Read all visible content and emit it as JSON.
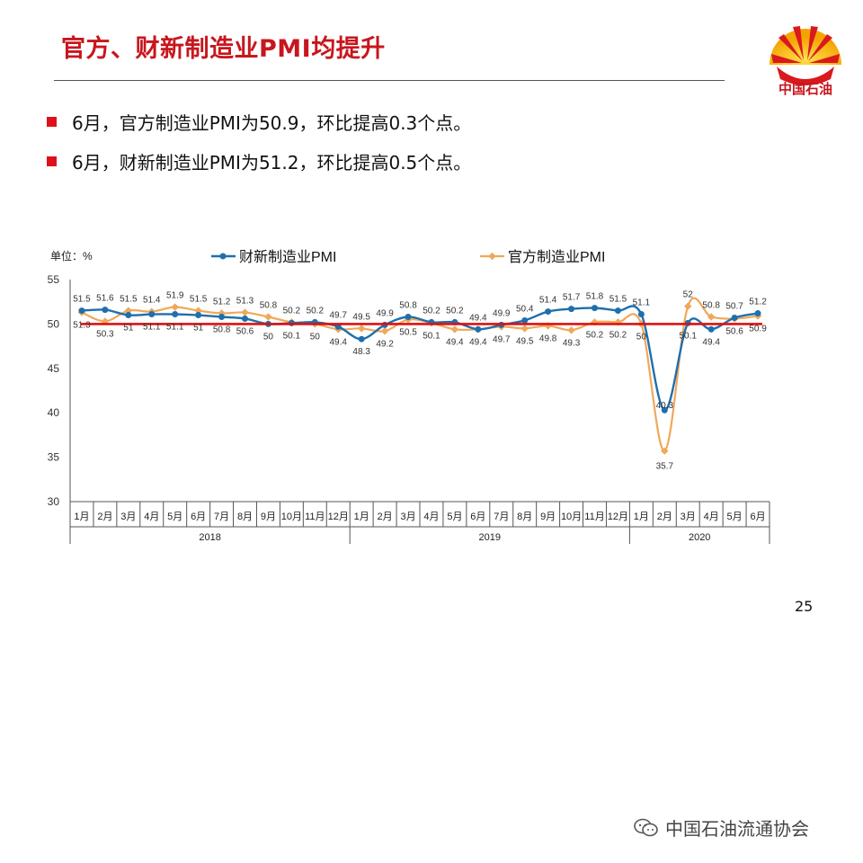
{
  "slide": {
    "title": "官方、财新制造业PMI均提升",
    "bullets": [
      "6月，官方制造业PMI为50.9，环比提高0.3个点。",
      "6月，财新制造业PMI为51.2，环比提高0.5个点。"
    ],
    "page_number": "25",
    "logo_text": "中国石油",
    "footer_text": "中国石油流通协会"
  },
  "colors": {
    "title": "#c8161d",
    "bullet": "#e0101a",
    "caixin": "#1f6fad",
    "official": "#f0a85a",
    "reference_line": "#e01010"
  },
  "chart_data": {
    "type": "line",
    "unit_label": "单位：%",
    "categories": [
      "1月",
      "2月",
      "3月",
      "4月",
      "5月",
      "6月",
      "7月",
      "8月",
      "9月",
      "10月",
      "11月",
      "12月",
      "1月",
      "2月",
      "3月",
      "4月",
      "5月",
      "6月",
      "7月",
      "8月",
      "9月",
      "10月",
      "11月",
      "12月",
      "1月",
      "2月",
      "3月",
      "4月",
      "5月",
      "6月"
    ],
    "year_groups": [
      {
        "label": "2018",
        "start": 0,
        "count": 12
      },
      {
        "label": "2019",
        "start": 12,
        "count": 12
      },
      {
        "label": "2020",
        "start": 24,
        "count": 6
      }
    ],
    "ylim": [
      30,
      55
    ],
    "yticks": [
      30,
      35,
      40,
      45,
      50,
      55
    ],
    "reference_line": 50,
    "legend_position": "top",
    "series": [
      {
        "name": "财新制造业PMI",
        "color": "#1f6fad",
        "values": [
          51.5,
          51.6,
          51.0,
          51.1,
          51.1,
          51.0,
          50.8,
          50.6,
          50.0,
          50.1,
          50.2,
          49.7,
          48.3,
          49.9,
          50.8,
          50.2,
          50.2,
          49.4,
          49.9,
          50.4,
          51.4,
          51.7,
          51.8,
          51.5,
          51.1,
          40.3,
          50.1,
          49.4,
          50.7,
          51.2
        ],
        "labels": [
          "51.5",
          "51.6",
          "51",
          "51.1",
          "51.1",
          "51",
          "50.8",
          "50.6",
          "50",
          "50.1",
          "50.2",
          "49.7",
          "48.3",
          "49.9",
          "50.8",
          "50.2",
          "50.2",
          "49.4",
          "49.9",
          "50.4",
          "51.4",
          "51.7",
          "51.8",
          "51.5",
          "51.1",
          "40.3",
          "50.1",
          "49.4",
          "50.7",
          "51.2"
        ]
      },
      {
        "name": "官方制造业PMI",
        "color": "#f0a85a",
        "values": [
          51.3,
          50.3,
          51.5,
          51.4,
          51.9,
          51.5,
          51.2,
          51.3,
          50.8,
          50.2,
          50.0,
          49.4,
          49.5,
          49.2,
          50.5,
          50.1,
          49.4,
          49.4,
          49.7,
          49.5,
          49.8,
          49.3,
          50.2,
          50.2,
          50.0,
          35.7,
          52.0,
          50.8,
          50.6,
          50.9
        ],
        "labels": [
          "51.3",
          "50.3",
          "51.5",
          "51.4",
          "51.9",
          "51.5",
          "51.2",
          "51.3",
          "50.8",
          "50.2",
          "50",
          "49.4",
          "49.5",
          "49.2",
          "50.5",
          "50.1",
          "49.4",
          "49.4",
          "49.7",
          "49.5",
          "49.8",
          "49.3",
          "50.2",
          "50.2",
          "50",
          "35.7",
          "52",
          "50.8",
          "50.6",
          "50.9"
        ]
      }
    ]
  }
}
